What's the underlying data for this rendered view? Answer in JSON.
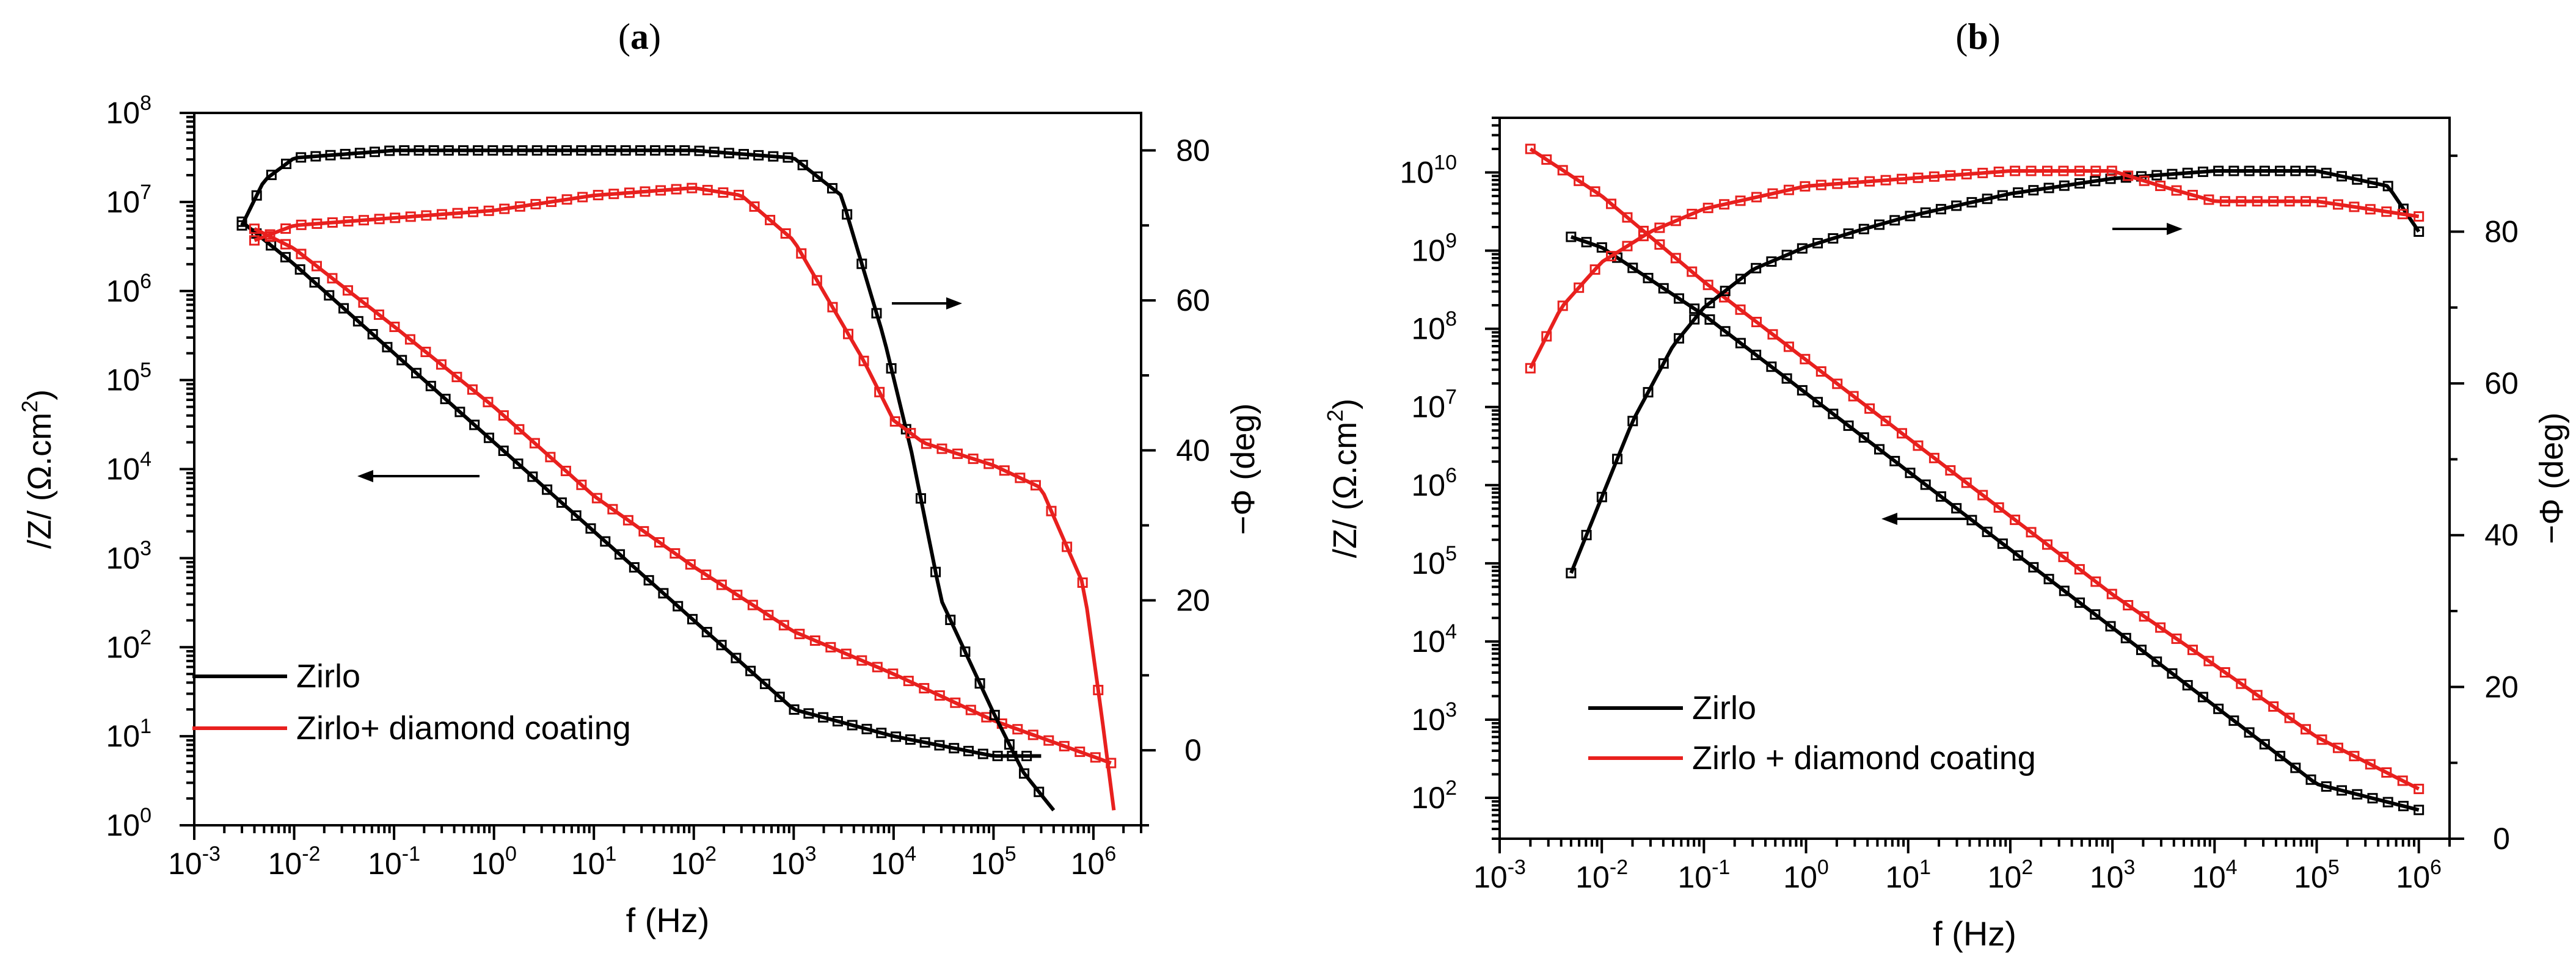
{
  "colors": {
    "zirlo": "#000000",
    "coated": "#e8201e"
  },
  "chart_data": [
    {
      "type": "line",
      "panel_label": "a",
      "xlabel": "f (Hz)",
      "xscale": "log",
      "xlim": [
        0.001,
        3000000
      ],
      "x_tick_exponents": [
        "-3",
        "-2",
        "-1",
        "0",
        "1",
        "2",
        "3",
        "4",
        "5",
        "6"
      ],
      "y_left": {
        "label_main": "/Z/ (Ω.cm",
        "label_sup": "2",
        "label_end": ")",
        "scale": "log",
        "lim": [
          1,
          100000000
        ],
        "tick_exponents": [
          "0",
          "1",
          "2",
          "3",
          "4",
          "5",
          "6",
          "7",
          "8"
        ]
      },
      "y_right": {
        "label": "−Φ (deg)",
        "lim": [
          -10,
          85
        ],
        "ticks": [
          "0",
          "20",
          "40",
          "60",
          "80"
        ]
      },
      "legend": {
        "position": "bottom-left",
        "entries": [
          "Zirlo",
          "Zirlo+ diamond coating"
        ]
      },
      "annotations": [
        {
          "type": "arrow",
          "direction": "left",
          "axis": "left"
        },
        {
          "type": "arrow",
          "direction": "right",
          "axis": "right"
        }
      ],
      "series": [
        {
          "name": "Zirlo",
          "color": "#000000",
          "quantity": "|Z|",
          "axis": "left",
          "x": [
            0.003,
            0.01,
            0.1,
            1,
            10,
            100,
            1000,
            10000,
            100000,
            300000
          ],
          "y": [
            6000000,
            2000000,
            200000,
            20000,
            2000,
            200,
            20,
            10,
            6,
            6
          ]
        },
        {
          "name": "Zirlo+ diamond coating",
          "color": "#e8201e",
          "quantity": "|Z|",
          "axis": "left",
          "x": [
            0.004,
            0.01,
            0.1,
            1,
            10,
            100,
            1000,
            10000,
            100000,
            1500000
          ],
          "y": [
            5000000,
            3000000,
            400000,
            50000,
            5000,
            800,
            150,
            50,
            15,
            5
          ]
        },
        {
          "name": "Zirlo",
          "color": "#000000",
          "quantity": "phase",
          "axis": "right",
          "x": [
            0.003,
            0.005,
            0.01,
            0.1,
            1,
            10,
            100,
            1000,
            3000,
            8000,
            15000,
            30000,
            100000,
            200000,
            400000
          ],
          "y": [
            70,
            76,
            79,
            80,
            80,
            80,
            80,
            79,
            74,
            55,
            40,
            20,
            5,
            -3,
            -8
          ]
        },
        {
          "name": "Zirlo+ diamond coating",
          "color": "#e8201e",
          "quantity": "phase",
          "axis": "right",
          "x": [
            0.004,
            0.01,
            0.1,
            1,
            10,
            100,
            300,
            1000,
            5000,
            10000,
            20000,
            100000,
            300000,
            800000,
            1200000,
            1600000
          ],
          "y": [
            68,
            70,
            71,
            72,
            74,
            75,
            74,
            68,
            52,
            44,
            41,
            38,
            35,
            22,
            5,
            -8
          ]
        }
      ]
    },
    {
      "type": "line",
      "panel_label": "b",
      "xlabel": "f (Hz)",
      "xscale": "log",
      "xlim": [
        0.001,
        2000000
      ],
      "x_tick_exponents": [
        "-3",
        "-2",
        "-1",
        "0",
        "1",
        "2",
        "3",
        "4",
        "5",
        "6"
      ],
      "y_left": {
        "label_main": "/Z/ (Ω.cm",
        "label_sup": "2",
        "label_end": ")",
        "scale": "log",
        "lim": [
          30,
          50000000000
        ],
        "tick_exponents": [
          "2",
          "3",
          "4",
          "5",
          "6",
          "7",
          "8",
          "9",
          "10"
        ]
      },
      "y_right": {
        "label": "−Φ (deg)",
        "lim": [
          0,
          95
        ],
        "ticks": [
          "0",
          "20",
          "40",
          "60",
          "80"
        ]
      },
      "legend": {
        "position": "bottom-left",
        "entries": [
          "Zirlo",
          "Zirlo + diamond coating"
        ]
      },
      "annotations": [
        {
          "type": "arrow",
          "direction": "left",
          "axis": "left"
        },
        {
          "type": "arrow",
          "direction": "right",
          "axis": "right"
        }
      ],
      "series": [
        {
          "name": "Zirlo",
          "color": "#000000",
          "quantity": "|Z|",
          "axis": "left",
          "x": [
            0.005,
            0.01,
            0.1,
            1,
            10,
            100,
            1000,
            10000,
            100000,
            1000000
          ],
          "y": [
            1500000000,
            1100000000,
            150000000,
            15000000,
            1500000,
            150000,
            15000,
            1500,
            150,
            70
          ]
        },
        {
          "name": "Zirlo + diamond coating",
          "color": "#e8201e",
          "quantity": "|Z|",
          "axis": "left",
          "x": [
            0.002,
            0.01,
            0.1,
            1,
            10,
            100,
            1000,
            10000,
            100000,
            1000000
          ],
          "y": [
            20000000000,
            5000000000,
            400000000,
            40000000,
            4000000,
            400000,
            40000,
            5000,
            600,
            130
          ]
        },
        {
          "name": "Zirlo",
          "color": "#000000",
          "quantity": "phase",
          "axis": "right",
          "x": [
            0.005,
            0.01,
            0.02,
            0.05,
            0.1,
            0.3,
            1,
            3,
            10,
            100,
            1000,
            10000,
            100000,
            500000,
            1000000
          ],
          "y": [
            35,
            45,
            55,
            65,
            70,
            75,
            78,
            80,
            82,
            85,
            87,
            88,
            88,
            86,
            80
          ]
        },
        {
          "name": "Zirlo + diamond coating",
          "color": "#e8201e",
          "quantity": "phase",
          "axis": "right",
          "x": [
            0.002,
            0.004,
            0.01,
            0.03,
            0.1,
            1,
            10,
            100,
            1000,
            3000,
            10000,
            100000,
            1000000
          ],
          "y": [
            62,
            70,
            76,
            80,
            83,
            86,
            87,
            88,
            88,
            86,
            84,
            84,
            82
          ]
        }
      ]
    }
  ]
}
